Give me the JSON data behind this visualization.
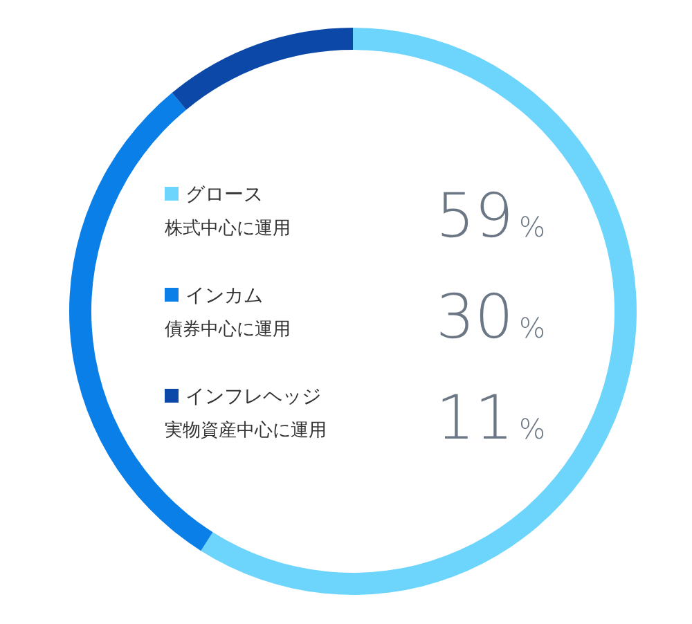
{
  "chart_data": {
    "type": "donut",
    "categories": [
      "グロース",
      "インカム",
      "インフレヘッジ"
    ],
    "values": [
      59,
      30,
      11
    ],
    "colors": [
      "#6dd5fb",
      "#0a7fe8",
      "#0b48a8"
    ],
    "value_labels": [
      "59%",
      "30%",
      "11%"
    ],
    "annotations": [
      "株式中心に運用",
      "債券中心に運用",
      "実物資産中心に運用"
    ],
    "legend": "center"
  }
}
